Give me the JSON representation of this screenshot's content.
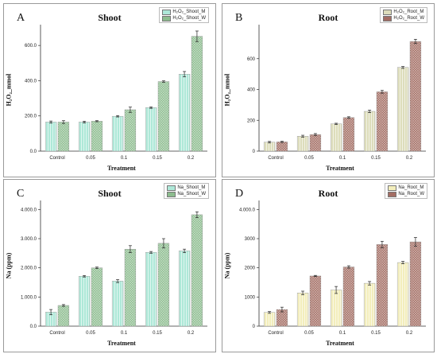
{
  "colors": {
    "shoot_m": "#aee8d8",
    "shoot_w": "#8cbc8e",
    "root_h2o2_m": "#ddddbb",
    "root_h2o2_w": "#a36d63",
    "root_na_m": "#f3eebc",
    "root_na_w": "#a36d63"
  },
  "chart_data": [
    {
      "type": "bar",
      "panel_letter": "A",
      "title": "Shoot",
      "xlabel": "Treatment",
      "ylabel": "H₂O₂_mmol",
      "categories": [
        "Control",
        "0.05",
        "0.1",
        "0.15",
        "0.2"
      ],
      "ylim": [
        0,
        700
      ],
      "yticks": [
        0,
        200,
        400,
        600
      ],
      "ytick_labels": [
        "0.0",
        "200.0",
        "400.0",
        "600.0"
      ],
      "legend": "top-right",
      "series": [
        {
          "name": "H₂O₂_Shoot_M",
          "values": [
            165,
            165,
            198,
            247,
            437
          ],
          "errors": [
            6,
            5,
            4,
            4,
            15
          ]
        },
        {
          "name": "H₂O₂_Shoot_W",
          "values": [
            165,
            170,
            235,
            395,
            652
          ],
          "errors": [
            8,
            3,
            15,
            4,
            30
          ]
        }
      ]
    },
    {
      "type": "bar",
      "panel_letter": "B",
      "title": "Root",
      "xlabel": "Treatment",
      "ylabel": "H₂O₂_mmol",
      "categories": [
        "Control",
        "0.05",
        "0.1",
        "0.15",
        "0.2"
      ],
      "ylim": [
        0,
        800
      ],
      "yticks": [
        0,
        200,
        400,
        600
      ],
      "ytick_labels": [
        "0",
        "200",
        "400",
        "600"
      ],
      "legend": "top-right",
      "series": [
        {
          "name": "H₂O₂_Root_M",
          "values": [
            58,
            97,
            177,
            258,
            543
          ],
          "errors": [
            5,
            6,
            4,
            8,
            6
          ]
        },
        {
          "name": "H₂O₂_Root_W",
          "values": [
            60,
            108,
            218,
            385,
            712
          ],
          "errors": [
            4,
            6,
            5,
            9,
            14
          ]
        }
      ]
    },
    {
      "type": "bar",
      "panel_letter": "C",
      "title": "Shoot",
      "xlabel": "Treatment",
      "ylabel": "Na (ppm)",
      "categories": [
        "Control",
        "0.05",
        "0.1",
        "0.15",
        "0.2"
      ],
      "ylim": [
        0,
        4200
      ],
      "yticks": [
        0,
        1000,
        2000,
        3000,
        4000
      ],
      "ytick_labels": [
        "0.0",
        "1.000.0",
        "2.000.0",
        "3.000.0",
        "4.000.0"
      ],
      "legend": "top-right",
      "series": [
        {
          "name": "Na_Shoot_M",
          "values": [
            480,
            1710,
            1545,
            2530,
            2580
          ],
          "errors": [
            90,
            25,
            50,
            30,
            60
          ]
        },
        {
          "name": "Na_Shoot_W",
          "values": [
            710,
            2000,
            2640,
            2840,
            3820
          ],
          "errors": [
            30,
            25,
            120,
            160,
            100
          ]
        }
      ]
    },
    {
      "type": "bar",
      "panel_letter": "D",
      "title": "Root",
      "xlabel": "Treatment",
      "ylabel": "Na (ppm)",
      "categories": [
        "Control",
        "0.05",
        "0.1",
        "0.15",
        "0.2"
      ],
      "ylim": [
        0,
        4200
      ],
      "yticks": [
        0,
        1000,
        2000,
        3000,
        4000
      ],
      "ytick_labels": [
        "0",
        "1000",
        "2000",
        "3000",
        "4.000.0"
      ],
      "legend": "top-right",
      "series": [
        {
          "name": "Na_Root_M",
          "values": [
            470,
            1140,
            1240,
            1470,
            2180
          ],
          "errors": [
            30,
            60,
            120,
            60,
            40
          ]
        },
        {
          "name": "Na_Root_W",
          "values": [
            570,
            1720,
            2030,
            2800,
            2890
          ],
          "errors": [
            80,
            20,
            40,
            110,
            150
          ]
        }
      ]
    }
  ]
}
